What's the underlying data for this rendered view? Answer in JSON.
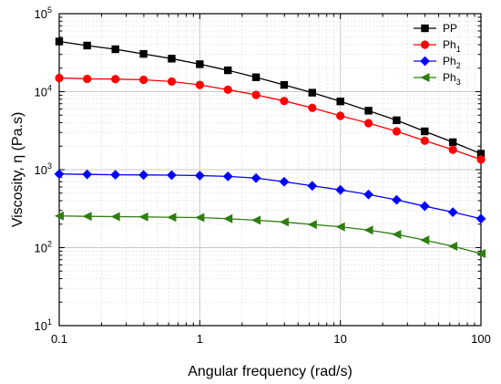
{
  "chart_data": {
    "type": "line",
    "x_scale": "log",
    "y_scale": "log",
    "xlabel": "Angular frequency (rad/s)",
    "ylabel": "Viscosity, η (Pa.s)",
    "xlim": [
      0.1,
      100
    ],
    "ylim": [
      10,
      100000
    ],
    "grid": true,
    "legend_position": "top-right",
    "x_ticks": [
      {
        "value": 0.1,
        "label": "0.1"
      },
      {
        "value": 1,
        "label": "1"
      },
      {
        "value": 10,
        "label": "10"
      },
      {
        "value": 100,
        "label": "100"
      }
    ],
    "y_ticks": [
      {
        "value": 10,
        "base": "10",
        "exp": "1"
      },
      {
        "value": 100,
        "base": "10",
        "exp": "2"
      },
      {
        "value": 1000,
        "base": "10",
        "exp": "3"
      },
      {
        "value": 10000,
        "base": "10",
        "exp": "4"
      },
      {
        "value": 100000,
        "base": "10",
        "exp": "5"
      }
    ],
    "x": [
      0.1,
      0.158,
      0.251,
      0.398,
      0.631,
      1,
      1.585,
      2.512,
      3.981,
      6.31,
      10,
      15.85,
      25.12,
      39.81,
      63.1,
      100
    ],
    "series": [
      {
        "name": "PP",
        "base": "Ph",
        "sub": "",
        "label": "PP",
        "color": "#000000",
        "marker": "square",
        "values": [
          44000,
          39000,
          35000,
          30500,
          26500,
          22500,
          18800,
          15300,
          12200,
          9700,
          7500,
          5700,
          4300,
          3100,
          2250,
          1600
        ]
      },
      {
        "name": "Ph1",
        "label_base": "Ph",
        "label_sub": "1",
        "color": "#ff0000",
        "marker": "circle",
        "values": [
          15000,
          14600,
          14500,
          14200,
          13500,
          12200,
          10600,
          9100,
          7600,
          6200,
          4900,
          3950,
          3100,
          2350,
          1800,
          1350
        ]
      },
      {
        "name": "Ph2",
        "label_base": "Ph",
        "label_sub": "2",
        "color": "#0000ff",
        "marker": "diamond",
        "values": [
          880,
          870,
          860,
          855,
          850,
          840,
          820,
          780,
          700,
          620,
          550,
          480,
          410,
          340,
          285,
          235
        ]
      },
      {
        "name": "Ph3",
        "label_base": "Ph",
        "label_sub": "3",
        "color": "#2e7d10",
        "marker": "triangle-left",
        "values": [
          255,
          252,
          250,
          248,
          245,
          243,
          235,
          225,
          213,
          198,
          185,
          168,
          148,
          125,
          104,
          84
        ]
      }
    ]
  }
}
